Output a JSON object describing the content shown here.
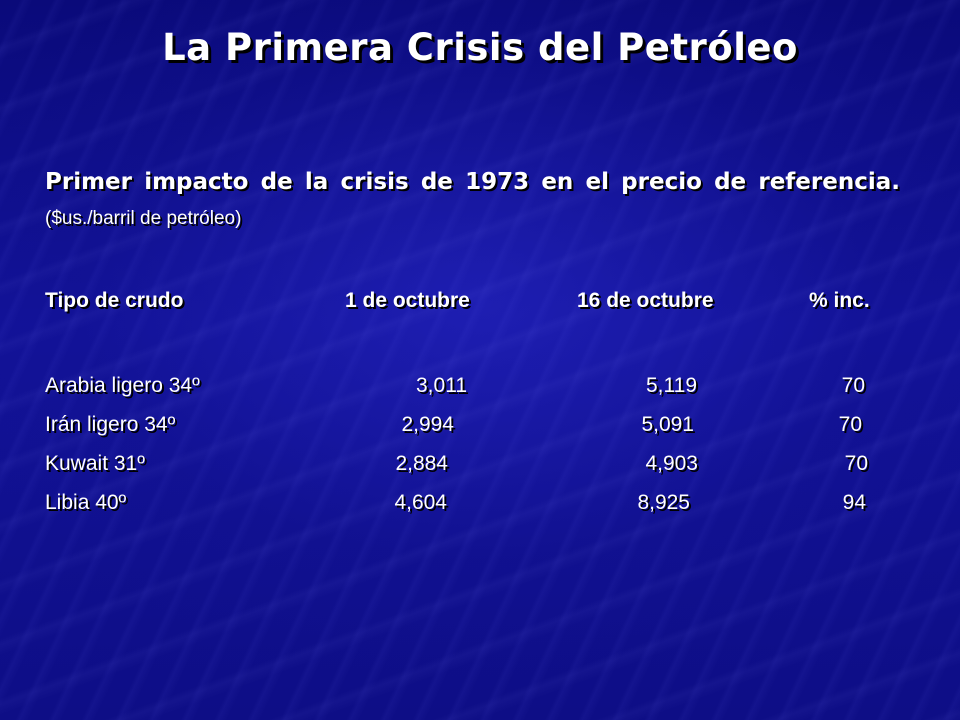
{
  "slide": {
    "title": "La Primera Crisis del Petróleo",
    "intro_main": "Primer impacto de la crisis de 1973 en el precio de referencia.",
    "intro_note": "($us./barril de petróleo)"
  },
  "table": {
    "headers": [
      "Tipo de crudo",
      "1 de octubre",
      "16 de octubre",
      "% inc."
    ],
    "rows": [
      {
        "tipo": "Arabia ligero 34º",
        "oct1": "3,011",
        "oct16": "5,119",
        "inc": "70"
      },
      {
        "tipo": "Irán ligero 34º",
        "oct1": "2,994",
        "oct16": "5,091",
        "inc": "70"
      },
      {
        "tipo": "Kuwait 31º",
        "oct1": "2,884",
        "oct16": "4,903",
        "inc": "70"
      },
      {
        "tipo": "Libia 40º",
        "oct1": "4,604",
        "oct16": "8,925",
        "inc": "94"
      }
    ]
  },
  "colors": {
    "background": "#10108f",
    "text": "#ffffff",
    "shadow": "#000000"
  }
}
